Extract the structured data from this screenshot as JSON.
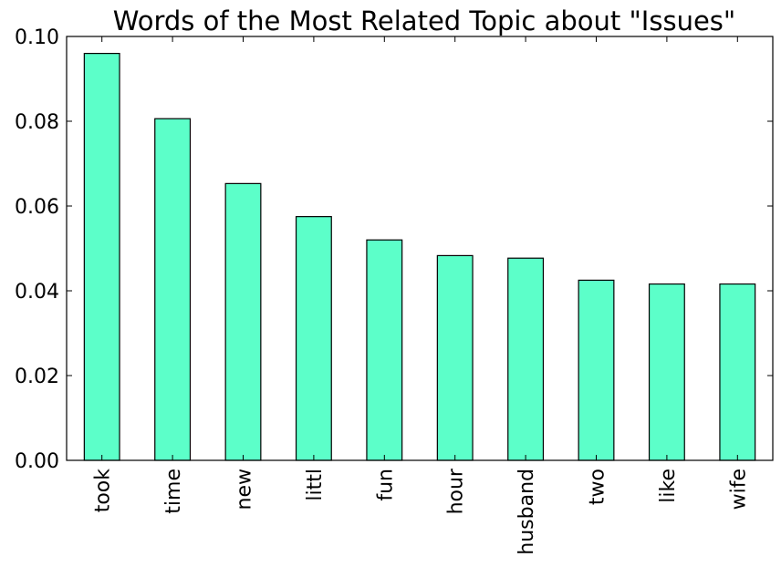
{
  "chart_data": {
    "type": "bar",
    "title": "Words of the Most Related Topic about \"Issues\"",
    "xlabel": "",
    "ylabel": "",
    "categories": [
      "took",
      "time",
      "new",
      "littl",
      "fun",
      "hour",
      "husband",
      "two",
      "like",
      "wife"
    ],
    "values": [
      0.096,
      0.0806,
      0.0653,
      0.0575,
      0.052,
      0.0483,
      0.0477,
      0.0425,
      0.0416,
      0.0416
    ],
    "ylim": [
      0,
      0.1
    ],
    "yticks": [
      "0.00",
      "0.02",
      "0.04",
      "0.06",
      "0.08",
      "0.10"
    ],
    "bar_color": "#5cffc9",
    "edge_color": "#000000",
    "grid": false,
    "legend": "none"
  }
}
